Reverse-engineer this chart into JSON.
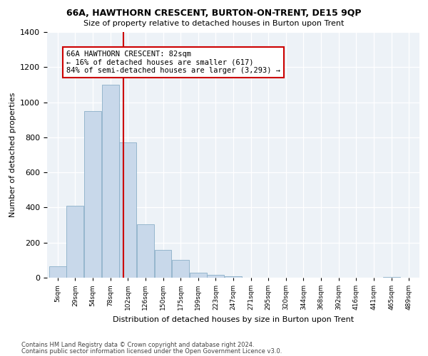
{
  "title": "66A, HAWTHORN CRESCENT, BURTON-ON-TRENT, DE15 9QP",
  "subtitle": "Size of property relative to detached houses in Burton upon Trent",
  "xlabel": "Distribution of detached houses by size in Burton upon Trent",
  "ylabel": "Number of detached properties",
  "footer_line1": "Contains HM Land Registry data © Crown copyright and database right 2024.",
  "footer_line2": "Contains public sector information licensed under the Open Government Licence v3.0.",
  "annotation_title": "66A HAWTHORN CRESCENT: 82sqm",
  "annotation_line1": "← 16% of detached houses are smaller (617)",
  "annotation_line2": "84% of semi-detached houses are larger (3,293) →",
  "bar_color": "#c8d8ea",
  "bar_edge_color": "#8aafc8",
  "red_line_color": "#cc0000",
  "annotation_box_color": "#ffffff",
  "annotation_box_edge": "#cc0000",
  "background_color": "#edf2f7",
  "categories": [
    "5sqm",
    "29sqm",
    "54sqm",
    "78sqm",
    "102sqm",
    "126sqm",
    "150sqm",
    "175sqm",
    "199sqm",
    "223sqm",
    "247sqm",
    "271sqm",
    "295sqm",
    "320sqm",
    "344sqm",
    "368sqm",
    "392sqm",
    "416sqm",
    "441sqm",
    "465sqm",
    "489sqm"
  ],
  "values": [
    65,
    410,
    950,
    1100,
    770,
    305,
    160,
    100,
    30,
    15,
    10,
    0,
    0,
    0,
    0,
    0,
    0,
    0,
    0,
    5,
    0
  ],
  "red_line_x": 3.75,
  "ylim": [
    0,
    1400
  ],
  "yticks": [
    0,
    200,
    400,
    600,
    800,
    1000,
    1200,
    1400
  ],
  "n_bins": 21
}
